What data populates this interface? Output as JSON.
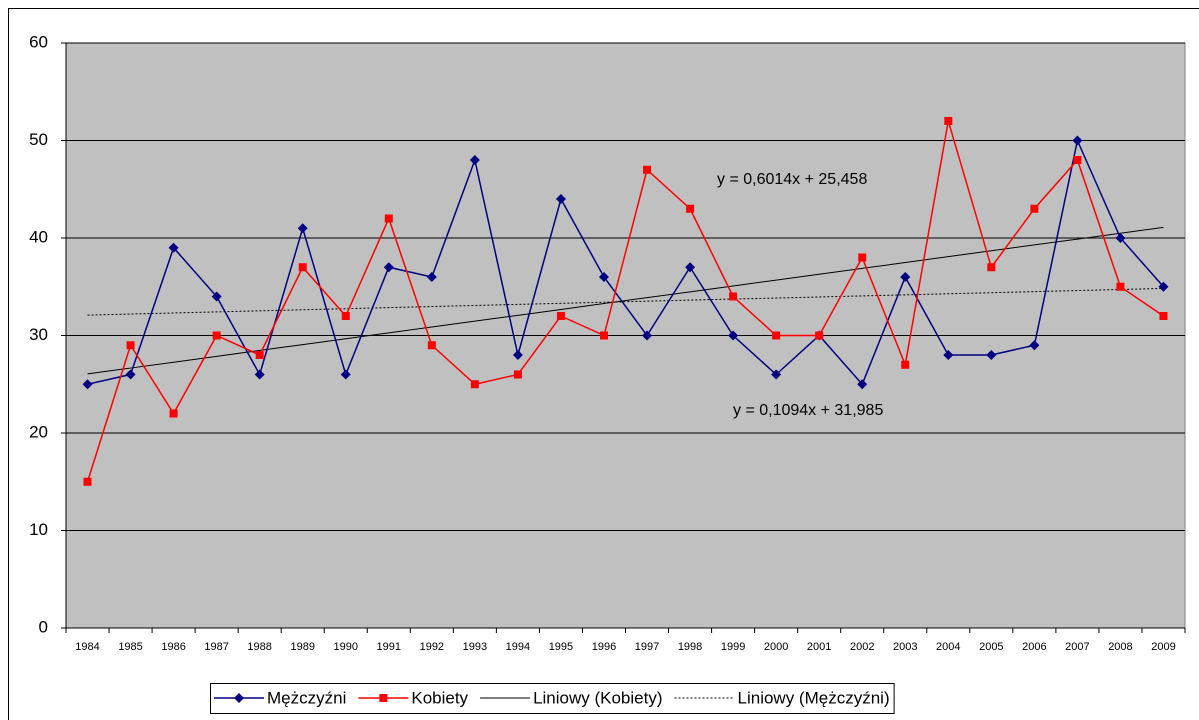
{
  "chart_data": {
    "type": "line",
    "categories": [
      "1984",
      "1985",
      "1986",
      "1987",
      "1988",
      "1989",
      "1990",
      "1991",
      "1992",
      "1993",
      "1994",
      "1995",
      "1996",
      "1997",
      "1998",
      "1999",
      "2000",
      "2001",
      "2002",
      "2003",
      "2004",
      "2005",
      "2006",
      "2007",
      "2008",
      "2009"
    ],
    "series": [
      {
        "name": "Mężczyźni",
        "color": "#000080",
        "marker": "diamond",
        "dash": "solid",
        "values": [
          25,
          26,
          39,
          34,
          26,
          41,
          26,
          37,
          36,
          48,
          28,
          44,
          36,
          30,
          37,
          30,
          26,
          30,
          25,
          36,
          28,
          28,
          29,
          50,
          40,
          35
        ]
      },
      {
        "name": "Kobiety",
        "color": "#ff0000",
        "marker": "square",
        "dash": "solid",
        "values": [
          15,
          29,
          22,
          30,
          28,
          37,
          32,
          42,
          29,
          25,
          26,
          32,
          30,
          47,
          43,
          34,
          30,
          30,
          38,
          27,
          52,
          37,
          43,
          48,
          35,
          32
        ]
      },
      {
        "name": "Liniowy (Kobiety)",
        "color": "#000000",
        "marker": "none",
        "dash": "solid",
        "values": [
          26.06,
          26.66,
          27.26,
          27.86,
          28.47,
          29.07,
          29.67,
          30.27,
          30.87,
          31.47,
          32.07,
          32.67,
          33.28,
          33.88,
          34.48,
          35.08,
          35.68,
          36.28,
          36.88,
          37.49,
          38.09,
          38.69,
          39.29,
          39.89,
          40.49,
          41.09
        ]
      },
      {
        "name": "Liniowy (Mężczyźni)",
        "color": "#000000",
        "marker": "none",
        "dash": "dotted",
        "values": [
          32.09,
          32.2,
          32.31,
          32.42,
          32.53,
          32.64,
          32.75,
          32.86,
          32.97,
          33.08,
          33.19,
          33.3,
          33.41,
          33.52,
          33.63,
          33.74,
          33.84,
          33.95,
          34.06,
          34.17,
          34.28,
          34.39,
          34.5,
          34.61,
          34.72,
          34.83
        ]
      }
    ],
    "annotations": [
      "y = 0,6014x + 25,458",
      "y = 0,1094x + 31,985"
    ],
    "ylim": [
      0,
      60
    ],
    "yticks": [
      0,
      10,
      20,
      30,
      40,
      50,
      60
    ],
    "grid": true,
    "plot_background": "#c0c0c0",
    "legend": "bottom"
  }
}
